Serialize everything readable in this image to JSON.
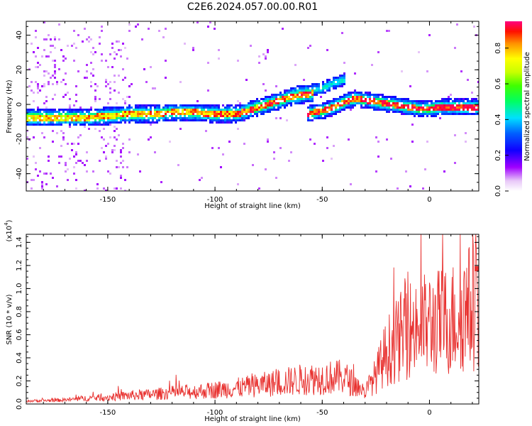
{
  "figure_title": "C2E6.2024.057.00.00.R01",
  "chart_data": [
    {
      "type": "heatmap",
      "xlabel": "Height of straight line (km)",
      "ylabel": "Frequency (Hz)",
      "xlim": [
        -188,
        23
      ],
      "ylim": [
        -50,
        48
      ],
      "xticks": [
        -150,
        -100,
        -50,
        0
      ],
      "yticks": [
        -40,
        -20,
        0,
        20,
        40
      ],
      "colorbar": {
        "label": "Normalized spectral amplitude",
        "range": [
          0,
          0.95
        ],
        "ticks": [
          0.0,
          0.2,
          0.4,
          0.6,
          0.8
        ]
      },
      "ridge": {
        "x": [
          -188,
          -175,
          -160,
          -150,
          -140,
          -130,
          -120,
          -110,
          -100,
          -90,
          -85,
          -80,
          -75,
          -70,
          -65,
          -60,
          -55
        ],
        "freq": [
          -7,
          -7,
          -7,
          -6,
          -5,
          -5,
          -4,
          -4,
          -5,
          -5,
          -3,
          -1,
          1,
          3,
          5,
          6,
          7
        ]
      },
      "ridge2": {
        "x": [
          -58,
          -50,
          -45,
          -40,
          -35,
          -30,
          -25,
          -20,
          -15,
          -10,
          -5,
          0,
          5,
          10,
          15,
          20,
          23
        ],
        "freq": [
          -5,
          -3,
          -1,
          2,
          4,
          3,
          2,
          1,
          0,
          -1,
          -2,
          -2,
          -1,
          -1,
          -1,
          -1,
          -1
        ]
      },
      "branch": {
        "x": [
          -65,
          -55,
          -50,
          -45,
          -40
        ],
        "freq": [
          7,
          9,
          10,
          13,
          15
        ]
      }
    },
    {
      "type": "line",
      "xlabel": "Height of straight line (km)",
      "ylabel": "SNR (10 * v/v)",
      "y_multiplier": "(x10",
      "y_multiplier_exp": "4",
      "y_multiplier_close": ")",
      "xlim": [
        -188,
        23
      ],
      "ylim": [
        0,
        1.47
      ],
      "xticks": [
        -150,
        -100,
        -50,
        0
      ],
      "yticks": [
        0.0,
        0.2,
        0.4,
        0.6,
        0.8,
        1.0,
        1.2,
        1.4
      ],
      "series_color": "#e8312f",
      "envelope": {
        "x": [
          -188,
          -170,
          -160,
          -150,
          -140,
          -130,
          -120,
          -110,
          -100,
          -90,
          -80,
          -70,
          -60,
          -50,
          -40,
          -30,
          -25,
          -20,
          -10,
          0,
          10,
          20,
          23
        ],
        "y": [
          0.02,
          0.03,
          0.05,
          0.06,
          0.08,
          0.09,
          0.11,
          0.12,
          0.14,
          0.16,
          0.19,
          0.22,
          0.25,
          0.27,
          0.28,
          0.12,
          0.3,
          0.55,
          0.8,
          0.85,
          0.9,
          1.05,
          1.12
        ]
      }
    }
  ],
  "colors": {
    "line": "#e8312f",
    "axis": "#000000",
    "background": "#ffffff"
  }
}
